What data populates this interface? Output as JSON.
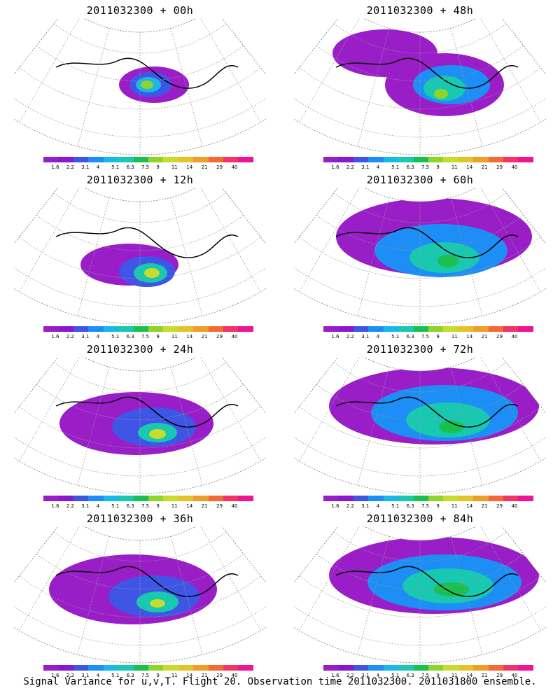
{
  "panels": [
    {
      "title": "2011032300 + 00h"
    },
    {
      "title": "2011032300 + 48h"
    },
    {
      "title": "2011032300 + 12h"
    },
    {
      "title": "2011032300 + 60h"
    },
    {
      "title": "2011032300 + 24h"
    },
    {
      "title": "2011032300 + 72h"
    },
    {
      "title": "2011032300 + 36h"
    },
    {
      "title": "2011032300 + 84h"
    }
  ],
  "colorbar": {
    "labels": [
      "1.6",
      "2.2",
      "3.1",
      "4",
      "5.1",
      "6.3",
      "7.5",
      "9",
      "11",
      "14",
      "21",
      "29",
      "40"
    ],
    "colors": [
      "#9a1ec8",
      "#8a17d0",
      "#3f55e6",
      "#1d8ef5",
      "#18b8e8",
      "#18c8b0",
      "#19c050",
      "#8ed52a",
      "#c8dc2c",
      "#e3c22a",
      "#ef9e2a",
      "#f36a34",
      "#f23466",
      "#ee1493"
    ]
  },
  "caption": "Signal Variance for u,v,T. Flight 20. Observation time 2011032300. 2011031800 ensemble."
}
